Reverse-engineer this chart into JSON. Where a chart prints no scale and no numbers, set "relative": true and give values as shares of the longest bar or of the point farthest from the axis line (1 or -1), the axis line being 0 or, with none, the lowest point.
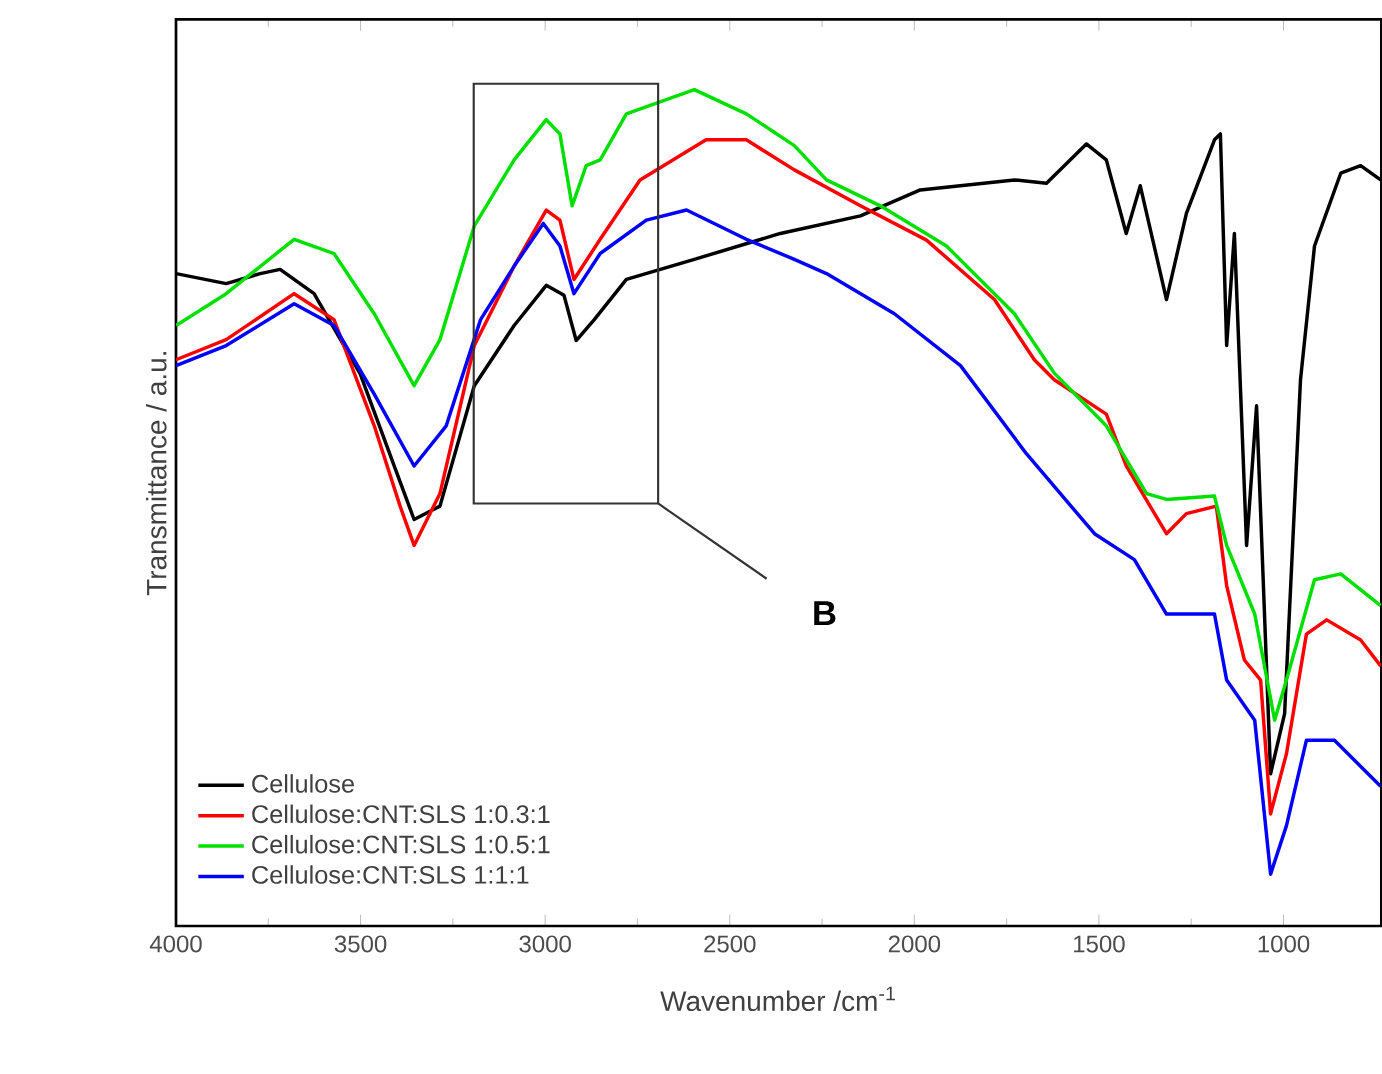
{
  "chart_data": {
    "type": "line",
    "relative": true,
    "xlabel": "Wavenumber /cm$^{-1}$",
    "ylabel": "Transmittance / a.u.",
    "xlim": [
      4000,
      735
    ],
    "xticks": [
      4000,
      3500,
      3000,
      2500,
      2000,
      1500,
      1000
    ],
    "legend": "bottom left",
    "grid": false,
    "marker": "none",
    "line_style": "solid",
    "annotations": [
      "B"
    ],
    "series": [
      {
        "name": "Cellulose",
        "color": "#000000",
        "x": [
          4000,
          3864,
          3772,
          3718,
          3626,
          3501,
          3409,
          3355,
          3285,
          3192,
          3084,
          2997,
          2949,
          2916,
          2867,
          2780,
          2596,
          2363,
          2146,
          1984,
          1729,
          1642,
          1534,
          1480,
          1426,
          1388,
          1317,
          1263,
          1187,
          1171,
          1154,
          1133,
          1100,
          1073,
          1035,
          997,
          954,
          916,
          845,
          791,
          737
        ],
        "values": [
          0.78,
          0.768,
          0.78,
          0.785,
          0.756,
          0.66,
          0.55,
          0.486,
          0.502,
          0.646,
          0.718,
          0.766,
          0.754,
          0.7,
          0.725,
          0.773,
          0.797,
          0.828,
          0.849,
          0.88,
          0.892,
          0.888,
          0.935,
          0.916,
          0.828,
          0.885,
          0.749,
          0.852,
          0.94,
          0.947,
          0.694,
          0.828,
          0.455,
          0.622,
          0.182,
          0.254,
          0.653,
          0.813,
          0.9,
          0.909,
          0.892
        ]
      },
      {
        "name": "Cellulose:CNT:SLS 1:0.3:1",
        "color": "#ff0000",
        "x": [
          4000,
          3864,
          3680,
          3572,
          3463,
          3393,
          3355,
          3285,
          3192,
          3084,
          2997,
          2960,
          2922,
          2851,
          2743,
          2564,
          2455,
          2325,
          2146,
          1967,
          1783,
          1675,
          1621,
          1480,
          1426,
          1317,
          1263,
          1182,
          1154,
          1106,
          1062,
          1035,
          992,
          938,
          883,
          791,
          737
        ],
        "values": [
          0.677,
          0.701,
          0.756,
          0.725,
          0.598,
          0.502,
          0.455,
          0.517,
          0.694,
          0.789,
          0.856,
          0.844,
          0.773,
          0.821,
          0.892,
          0.94,
          0.94,
          0.904,
          0.861,
          0.82,
          0.749,
          0.677,
          0.653,
          0.612,
          0.55,
          0.469,
          0.493,
          0.502,
          0.407,
          0.318,
          0.294,
          0.134,
          0.206,
          0.349,
          0.366,
          0.342,
          0.311
        ]
      },
      {
        "name": "Cellulose:CNT:SLS 1:0.5:1",
        "color": "#00e000",
        "x": [
          4000,
          3864,
          3680,
          3572,
          3463,
          3355,
          3285,
          3192,
          3084,
          2997,
          2960,
          2927,
          2889,
          2851,
          2780,
          2596,
          2455,
          2325,
          2238,
          2092,
          1913,
          1729,
          1621,
          1480,
          1371,
          1317,
          1187,
          1154,
          1078,
          1024,
          992,
          916,
          845,
          737
        ],
        "values": [
          0.718,
          0.756,
          0.821,
          0.804,
          0.732,
          0.646,
          0.701,
          0.837,
          0.916,
          0.964,
          0.947,
          0.861,
          0.909,
          0.916,
          0.971,
          1,
          0.971,
          0.933,
          0.892,
          0.861,
          0.813,
          0.732,
          0.661,
          0.598,
          0.517,
          0.51,
          0.514,
          0.455,
          0.373,
          0.246,
          0.294,
          0.414,
          0.421,
          0.383
        ]
      },
      {
        "name": "Cellulose:CNT:SLS 1:1:1",
        "color": "#0000ff",
        "x": [
          4000,
          3864,
          3680,
          3572,
          3463,
          3355,
          3268,
          3175,
          3084,
          3005,
          2960,
          2922,
          2851,
          2726,
          2617,
          2455,
          2325,
          2238,
          2054,
          1875,
          1697,
          1512,
          1404,
          1317,
          1187,
          1154,
          1078,
          1035,
          992,
          938,
          862,
          737
        ],
        "values": [
          0.67,
          0.694,
          0.744,
          0.718,
          0.636,
          0.55,
          0.598,
          0.725,
          0.789,
          0.84,
          0.813,
          0.756,
          0.804,
          0.844,
          0.856,
          0.821,
          0.797,
          0.78,
          0.732,
          0.67,
          0.565,
          0.469,
          0.438,
          0.373,
          0.373,
          0.294,
          0.246,
          0.062,
          0.12,
          0.222,
          0.222,
          0.167
        ]
      }
    ]
  }
}
